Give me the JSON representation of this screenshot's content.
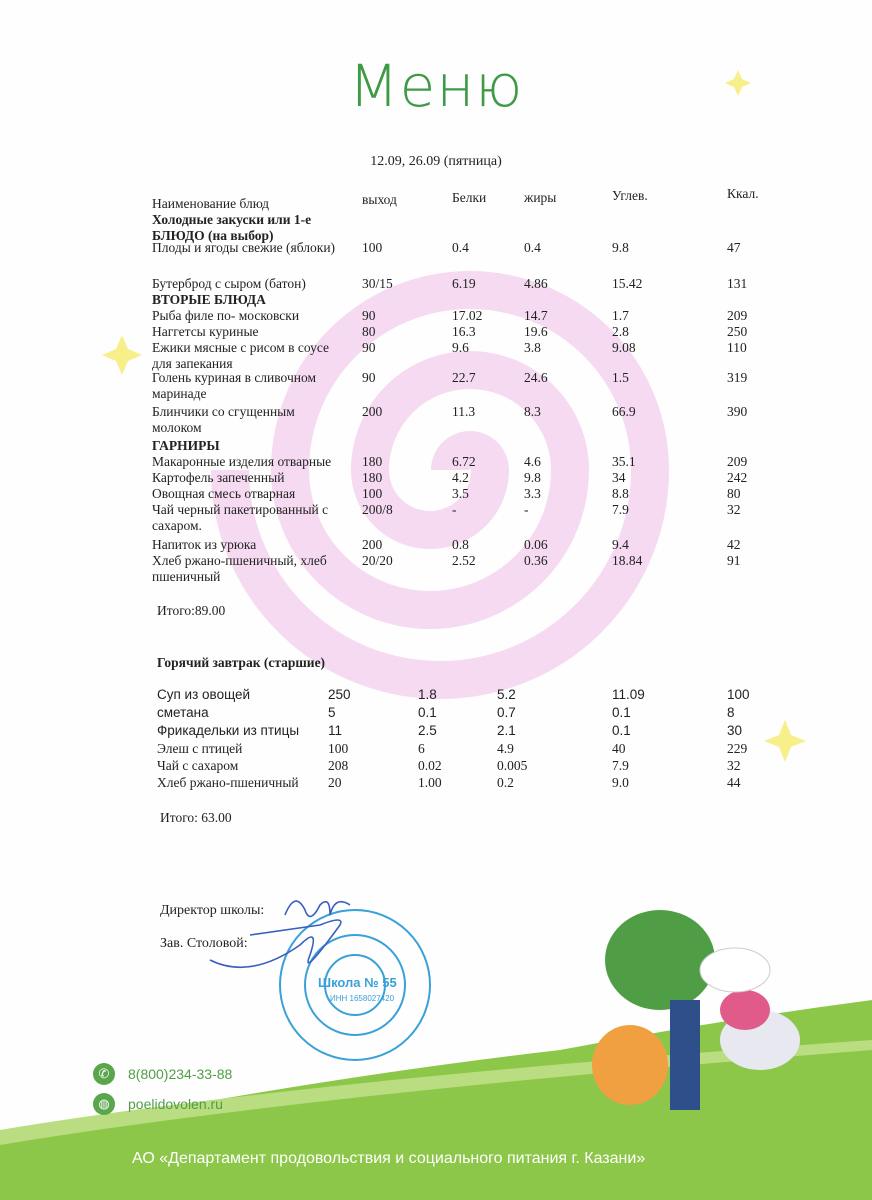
{
  "title": "Меню",
  "dates": "12.09, 26.09 (пятница)",
  "headers": [
    "Наименование блюд",
    "выход",
    "Белки",
    "жиры",
    "Углев.",
    "Ккал."
  ],
  "table1": [
    {
      "name": "Холодные закуски или 1-е БЛЮДО  (на выбор)",
      "bold": true
    },
    {
      "name": "Плоды и ягоды свежие (яблоки)",
      "out": "100",
      "b": "0.4",
      "f": "0.4",
      "c": "9.8",
      "k": "47"
    },
    {
      "name": "Бутерброд с сыром (батон)",
      "out": "30/15",
      "b": "6.19",
      "f": "4.86",
      "c": "15.42",
      "k": "131"
    },
    {
      "name": "ВТОРЫЕ БЛЮДА",
      "bold": true
    },
    {
      "name": "Рыба филе по- московски",
      "out": "90",
      "b": "17.02",
      "f": "14.7",
      "c": "1.7",
      "k": "209"
    },
    {
      "name": "Наггетсы куриные",
      "out": "80",
      "b": "16.3",
      "f": "19.6",
      "c": "2.8",
      "k": "250"
    },
    {
      "name": "Ежики мясные с рисом в соусе для запекания",
      "out": "90",
      "b": "9.6",
      "f": "3.8",
      "c": "9.08",
      "k": "110"
    },
    {
      "name": "Голень куриная в сливочном маринаде",
      "out": "90",
      "b": "22.7",
      "f": "24.6",
      "c": "1.5",
      "k": "319"
    },
    {
      "name": "Блинчики со сгущенным молоком",
      "out": "200",
      "b": "11.3",
      "f": "8.3",
      "c": "66.9",
      "k": "390"
    },
    {
      "name": "ГАРНИРЫ",
      "bold": true
    },
    {
      "name": "Макаронные изделия отварные",
      "out": "180",
      "b": "6.72",
      "f": "4.6",
      "c": "35.1",
      "k": "209"
    },
    {
      "name": "Картофель запеченный",
      "out": "180",
      "b": "4.2",
      "f": "9.8",
      "c": "34",
      "k": "242"
    },
    {
      "name": "Овощная смесь отварная",
      "out": "100",
      "b": "3.5",
      "f": "3.3",
      "c": "8.8",
      "k": "80"
    },
    {
      "name": "Чай черный пакетированный с сахаром.",
      "out": "200/8",
      "b": "-",
      "f": "-",
      "c": "7.9",
      "k": "32"
    },
    {
      "name": "Напиток из урюка",
      "out": "200",
      "b": "0.8",
      "f": "0.06",
      "c": "9.4",
      "k": "42"
    },
    {
      "name": "Хлеб ржано-пшеничный, хлеб пшеничный",
      "out": "20/20",
      "b": "2.52",
      "f": "0.36",
      "c": "18.84",
      "k": "91"
    }
  ],
  "total1": "Итого:89.00",
  "table2": [
    {
      "name": "Горячий завтрак (старшие)",
      "bold": true
    },
    {
      "name": "Суп из овощей",
      "out": "250",
      "b": "1.8",
      "f": "5.2",
      "c": "11.09",
      "k": "100",
      "sans": true
    },
    {
      "name": "сметана",
      "out": "5",
      "b": "0.1",
      "f": "0.7",
      "c": "0.1",
      "k": "8",
      "sans": true
    },
    {
      "name": "Фрикадельки из птицы",
      "out": "11",
      "b": "2.5",
      "f": "2.1",
      "c": "0.1",
      "k": "30",
      "sans": true
    },
    {
      "name": "Элеш с птицей",
      "out": "100",
      "b": "6",
      "f": "4.9",
      "c": "40",
      "k": "229"
    },
    {
      "name": "Чай с сахаром",
      "out": "208",
      "b": "0.02",
      "f": "0.005",
      "c": "7.9",
      "k": "32"
    },
    {
      "name": "Хлеб  ржано-пшеничный",
      "out": "20",
      "b": "1.00",
      "f": "0.2",
      "c": "9.0",
      "k": "44"
    }
  ],
  "total2": "Итого: 63.00",
  "signatures": {
    "director": "Директор школы:",
    "canteen": "Зав. Столовой:"
  },
  "stamp": {
    "text": "Школа № 55",
    "inn": "ИНН 1658027420"
  },
  "contacts": {
    "phone": "8(800)234-33-88",
    "site": "poelidovolen.ru",
    "phone_icon": "phone-icon",
    "site_icon": "globe-icon"
  },
  "footer": "АО «Департамент продовольствия и социального питания г. Казани»",
  "colors": {
    "brand_green": "#4f9e46",
    "swirl_pink": "#f3d3ee",
    "star_yellow": "#f7ef8a"
  }
}
